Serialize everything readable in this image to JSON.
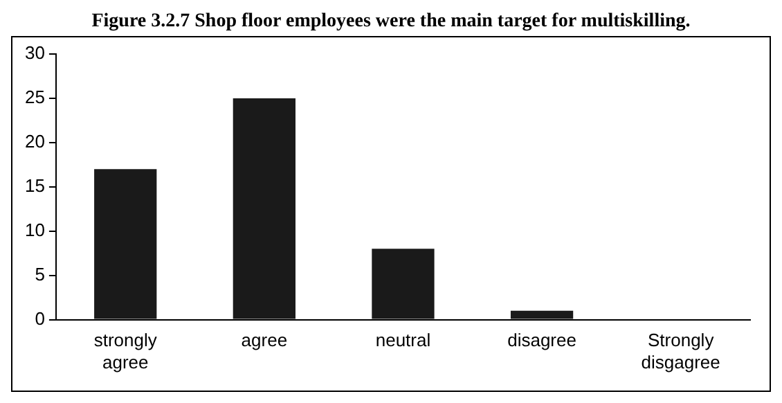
{
  "chart_data": {
    "type": "bar",
    "title": "Figure 3.2.7 Shop floor employees were the main target for multiskilling.",
    "categories": [
      "strongly agree",
      "agree",
      "neutral",
      "disagree",
      "Strongly disgagree"
    ],
    "values": [
      17,
      25,
      8,
      1,
      0
    ],
    "color": "#1a1a1a",
    "ylim": [
      0,
      30
    ],
    "yticks": [
      0,
      5,
      10,
      15,
      20,
      25,
      30
    ],
    "grid": false,
    "legend": false
  }
}
